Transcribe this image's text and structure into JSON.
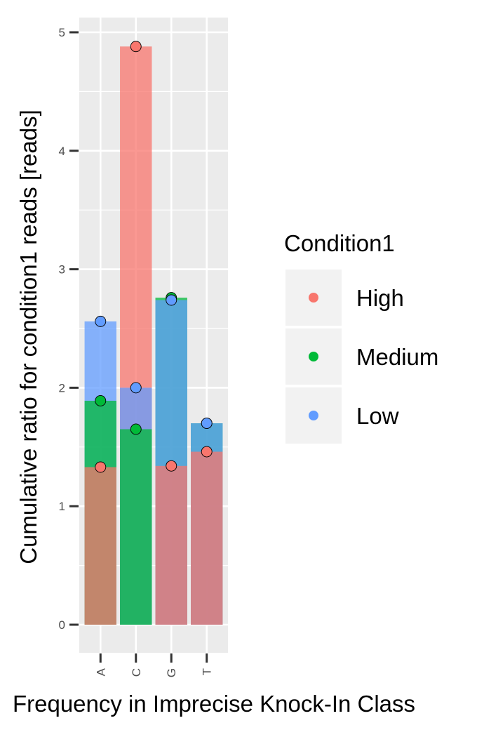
{
  "chart_data": {
    "type": "bar",
    "categories": [
      "A",
      "C",
      "G",
      "T"
    ],
    "xlabel": "Frequency in Imprecise Knock-In Class",
    "ylabel": "Cumulative ratio for condition1 reads [reads]",
    "ylim": [
      -0.25,
      5.25
    ],
    "yticks": [
      0,
      1,
      2,
      3,
      4,
      5
    ],
    "grid": true,
    "legend_position": "right",
    "legend_title": "Condition1",
    "series": [
      {
        "name": "High",
        "color": "#F8766D",
        "values": [
          1.33,
          4.88,
          1.34,
          1.46
        ]
      },
      {
        "name": "Medium",
        "color": "#00BA38",
        "values": [
          1.89,
          1.65,
          2.76,
          1.7
        ]
      },
      {
        "name": "Low",
        "color": "#619CFF",
        "values": [
          2.56,
          2.0,
          2.74,
          1.7
        ]
      }
    ],
    "panel_background": "#EBEBEB",
    "grid_color": "#FFFFFF",
    "bar_alpha": 0.75
  }
}
